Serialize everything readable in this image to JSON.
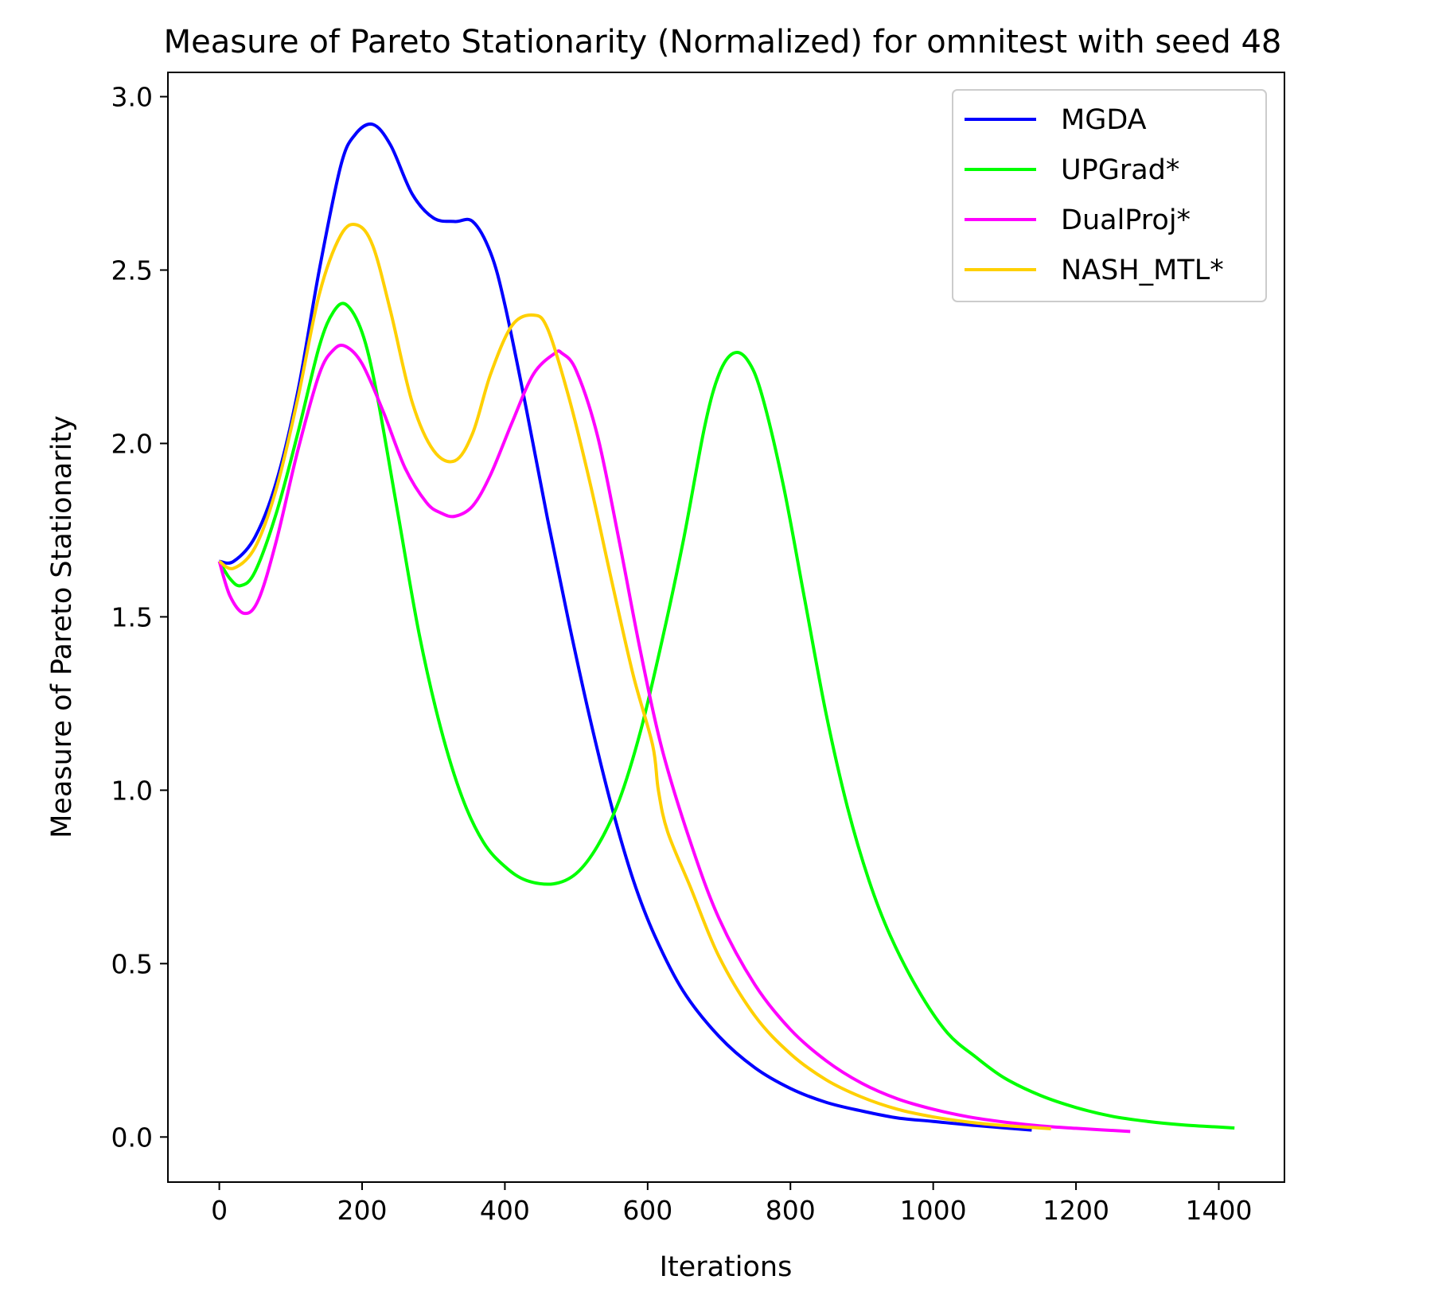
{
  "chart_data": {
    "type": "line",
    "title": "Measure of Pareto Stationarity (Normalized) for omnitest with seed 48",
    "xlabel": "Iterations",
    "ylabel": "Measure of Pareto Stationarity",
    "xlim": [
      -72,
      1492
    ],
    "ylim": [
      -0.13,
      3.07
    ],
    "xticks": [
      0,
      200,
      400,
      600,
      800,
      1000,
      1200,
      1400
    ],
    "yticks": [
      0.0,
      0.5,
      1.0,
      1.5,
      2.0,
      2.5,
      3.0
    ],
    "xtick_labels": [
      "0",
      "200",
      "400",
      "600",
      "800",
      "1000",
      "1200",
      "1400"
    ],
    "ytick_labels": [
      "0.0",
      "0.5",
      "1.0",
      "1.5",
      "2.0",
      "2.5",
      "3.0"
    ],
    "grid": false,
    "legend_position": "top-right",
    "series": [
      {
        "name": "MGDA",
        "color": "#0000ff",
        "x": [
          0,
          20,
          50,
          80,
          110,
          140,
          170,
          190,
          215,
          240,
          270,
          300,
          330,
          355,
          380,
          400,
          430,
          460,
          490,
          520,
          550,
          580,
          610,
          650,
          700,
          750,
          800,
          850,
          900,
          950,
          1000,
          1060,
          1138
        ],
        "y": [
          1.66,
          1.66,
          1.73,
          1.89,
          2.15,
          2.5,
          2.8,
          2.89,
          2.92,
          2.86,
          2.72,
          2.65,
          2.64,
          2.64,
          2.55,
          2.4,
          2.1,
          1.78,
          1.48,
          1.2,
          0.95,
          0.74,
          0.58,
          0.42,
          0.29,
          0.2,
          0.14,
          0.1,
          0.075,
          0.055,
          0.045,
          0.033,
          0.02
        ]
      },
      {
        "name": "UPGrad*",
        "color": "#00ff00",
        "x": [
          0,
          15,
          30,
          50,
          80,
          110,
          140,
          160,
          178,
          200,
          220,
          250,
          280,
          310,
          340,
          370,
          400,
          430,
          468,
          500,
          530,
          560,
          590,
          620,
          650,
          680,
          700,
          720,
          740,
          760,
          790,
          820,
          850,
          880,
          910,
          940,
          980,
          1020,
          1060,
          1100,
          1150,
          1200,
          1250,
          1300,
          1350,
          1422
        ],
        "y": [
          1.66,
          1.61,
          1.59,
          1.63,
          1.8,
          2.03,
          2.28,
          2.38,
          2.4,
          2.32,
          2.15,
          1.8,
          1.45,
          1.18,
          0.98,
          0.85,
          0.78,
          0.74,
          0.73,
          0.76,
          0.84,
          0.97,
          1.17,
          1.43,
          1.72,
          2.05,
          2.2,
          2.26,
          2.24,
          2.14,
          1.88,
          1.55,
          1.22,
          0.95,
          0.74,
          0.58,
          0.42,
          0.3,
          0.23,
          0.17,
          0.12,
          0.085,
          0.06,
          0.045,
          0.035,
          0.026
        ]
      },
      {
        "name": "DualProj*",
        "color": "#ff00ff",
        "x": [
          0,
          15,
          35,
          55,
          80,
          110,
          140,
          160,
          177,
          200,
          230,
          260,
          290,
          310,
          330,
          355,
          380,
          410,
          440,
          470,
          480,
          500,
          530,
          560,
          590,
          620,
          660,
          700,
          750,
          800,
          850,
          900,
          950,
          1000,
          1050,
          1100,
          1150,
          1200,
          1276
        ],
        "y": [
          1.66,
          1.56,
          1.51,
          1.55,
          1.72,
          1.98,
          2.2,
          2.27,
          2.28,
          2.23,
          2.09,
          1.93,
          1.83,
          1.8,
          1.79,
          1.82,
          1.91,
          2.06,
          2.2,
          2.26,
          2.26,
          2.21,
          2.02,
          1.72,
          1.4,
          1.12,
          0.85,
          0.63,
          0.44,
          0.31,
          0.22,
          0.155,
          0.11,
          0.08,
          0.058,
          0.043,
          0.032,
          0.025,
          0.016
        ]
      },
      {
        "name": "NASH_MTL*",
        "color": "#ffd000",
        "x": [
          0,
          20,
          50,
          80,
          110,
          140,
          170,
          193,
          215,
          240,
          270,
          300,
          330,
          355,
          380,
          410,
          440,
          460,
          490,
          520,
          550,
          580,
          607,
          615,
          628,
          660,
          700,
          750,
          800,
          850,
          900,
          950,
          1000,
          1050,
          1100,
          1165
        ],
        "y": [
          1.66,
          1.64,
          1.7,
          1.87,
          2.13,
          2.43,
          2.6,
          2.63,
          2.57,
          2.38,
          2.12,
          1.98,
          1.95,
          2.03,
          2.2,
          2.34,
          2.37,
          2.33,
          2.13,
          1.88,
          1.6,
          1.33,
          1.13,
          1.0,
          0.88,
          0.72,
          0.52,
          0.35,
          0.24,
          0.165,
          0.115,
          0.08,
          0.058,
          0.043,
          0.033,
          0.024
        ]
      }
    ]
  }
}
